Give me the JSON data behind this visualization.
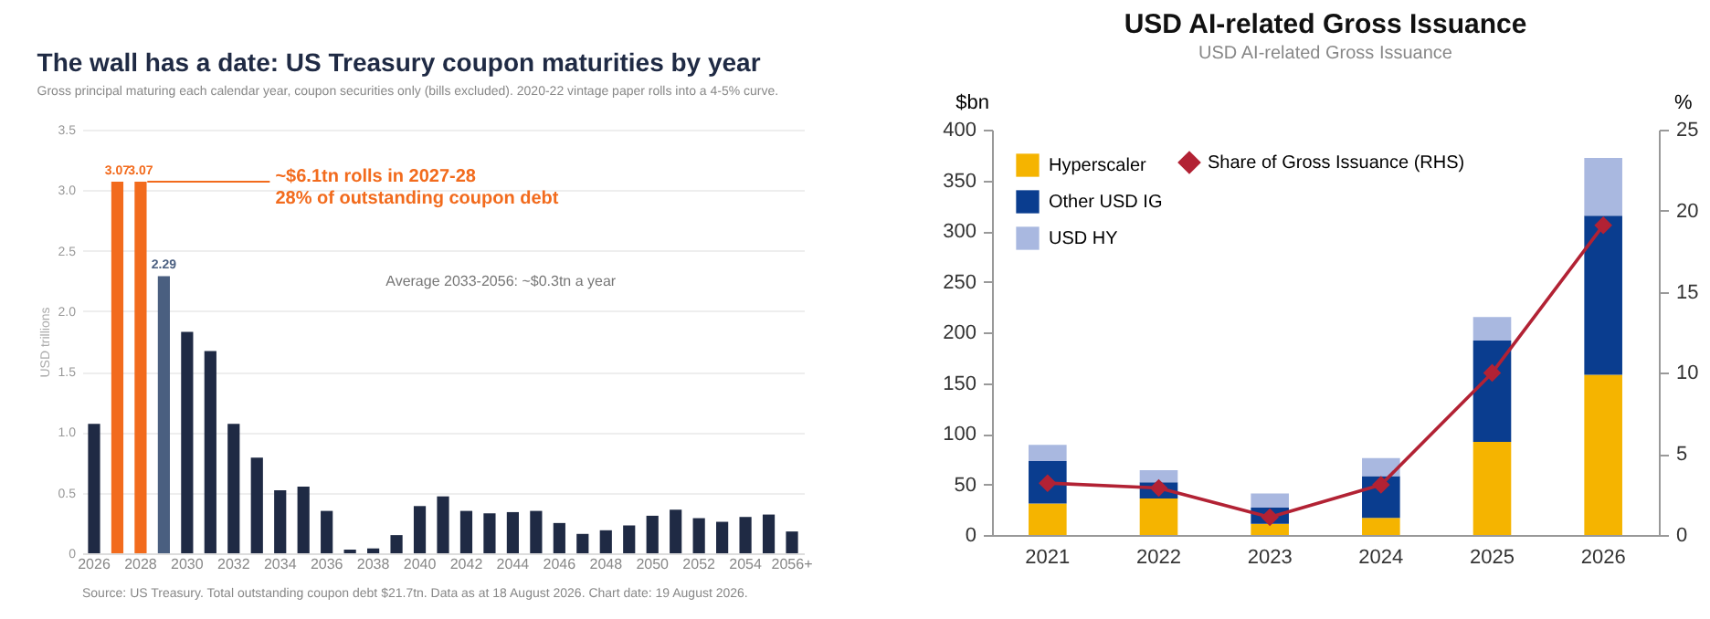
{
  "chart_data": [
    {
      "type": "bar",
      "title": "The wall has a date: US Treasury coupon maturities by year",
      "subtitle": "Gross principal maturing each calendar year, coupon securities only (bills excluded). 2020-22 vintage paper rolls into a 4-5% curve.",
      "ylabel": "USD trillions",
      "categories": [
        "2026",
        null,
        "2028",
        null,
        "2030",
        null,
        "2032",
        null,
        "2034",
        null,
        "2036",
        null,
        "2038",
        null,
        "2040",
        null,
        "2042",
        null,
        "2044",
        null,
        "2046",
        null,
        "2048",
        null,
        "2050",
        null,
        "2052",
        null,
        "2054",
        null,
        "2056+"
      ],
      "values": [
        1.07,
        3.07,
        3.07,
        2.29,
        1.83,
        1.67,
        1.07,
        0.79,
        0.52,
        0.55,
        0.35,
        0.03,
        0.04,
        0.15,
        0.39,
        0.47,
        0.35,
        0.33,
        0.34,
        0.35,
        0.25,
        0.16,
        0.19,
        0.23,
        0.31,
        0.36,
        0.29,
        0.26,
        0.3,
        0.32,
        0.18
      ],
      "colors": [
        "#1f2a44",
        "#f26b1d",
        "#f26b1d",
        "#4a5f80",
        "#1f2a44",
        "#1f2a44",
        "#1f2a44",
        "#1f2a44",
        "#1f2a44",
        "#1f2a44",
        "#1f2a44",
        "#1f2a44",
        "#1f2a44",
        "#1f2a44",
        "#1f2a44",
        "#1f2a44",
        "#1f2a44",
        "#1f2a44",
        "#1f2a44",
        "#1f2a44",
        "#1f2a44",
        "#1f2a44",
        "#1f2a44",
        "#1f2a44",
        "#1f2a44",
        "#1f2a44",
        "#1f2a44",
        "#1f2a44",
        "#1f2a44",
        "#1f2a44",
        "#1f2a44"
      ],
      "value_labels": [
        null,
        "3.07",
        "3.07",
        "2.29",
        null,
        null,
        null,
        null,
        null,
        null,
        null,
        null,
        null,
        null,
        null,
        null,
        null,
        null,
        null,
        null,
        null,
        null,
        null,
        null,
        null,
        null,
        null,
        null,
        null,
        null,
        null
      ],
      "ylim": [
        0,
        3.5
      ],
      "yticks": [
        0,
        0.5,
        {
          "value": 1,
          "label": "1.0"
        },
        1.5,
        {
          "value": 2,
          "label": "2.0"
        },
        2.5,
        {
          "value": 3,
          "label": "3.0"
        },
        3.5
      ],
      "grid": "y",
      "annotations": [
        {
          "text": "~$6.1tn rolls in 2027-28\n28% of outstanding coupon debt",
          "x": "2028",
          "y": 3.07
        },
        "Average 2033-2056: ~$0.3tn a year",
        "Source: US Treasury. Total outstanding coupon debt $21.7tn. Data as at 18 August 2026. Chart date: 19 August 2026."
      ]
    },
    {
      "type": "bar",
      "title": "USD AI-related Gross Issuance",
      "subtitle": "USD AI-related Gross Issuance",
      "ylabel": "$bn",
      "y2label": "%",
      "stacked": true,
      "legend": "top left",
      "marker": "diamond",
      "categories": [
        "2021",
        "2022",
        "2023",
        "2024",
        "2025",
        "2026"
      ],
      "series": [
        {
          "name": "Hyperscaler",
          "color": "#f5b400",
          "values": [
            31,
            36,
            11,
            17,
            92,
            158
          ]
        },
        {
          "name": "Other USD IG",
          "color": "#0a3d8f",
          "values": [
            42,
            16,
            16,
            41,
            100,
            157
          ]
        },
        {
          "name": "USD HY",
          "color": "#a9b8e0",
          "values": [
            16,
            12,
            14,
            18,
            23,
            57
          ]
        },
        {
          "name": "Share of Gross Issuance (RHS)",
          "color": "#b22234",
          "type": "line",
          "axis": "y2",
          "values": [
            3.2,
            2.9,
            1.1,
            3.1,
            10.0,
            19.1
          ]
        }
      ],
      "ylim": [
        0,
        400
      ],
      "yticks": [
        0,
        50,
        100,
        150,
        200,
        250,
        300,
        350,
        400
      ],
      "y2lim": [
        0,
        25
      ],
      "y2ticks": [
        0,
        5,
        10,
        15,
        20,
        25
      ]
    }
  ]
}
